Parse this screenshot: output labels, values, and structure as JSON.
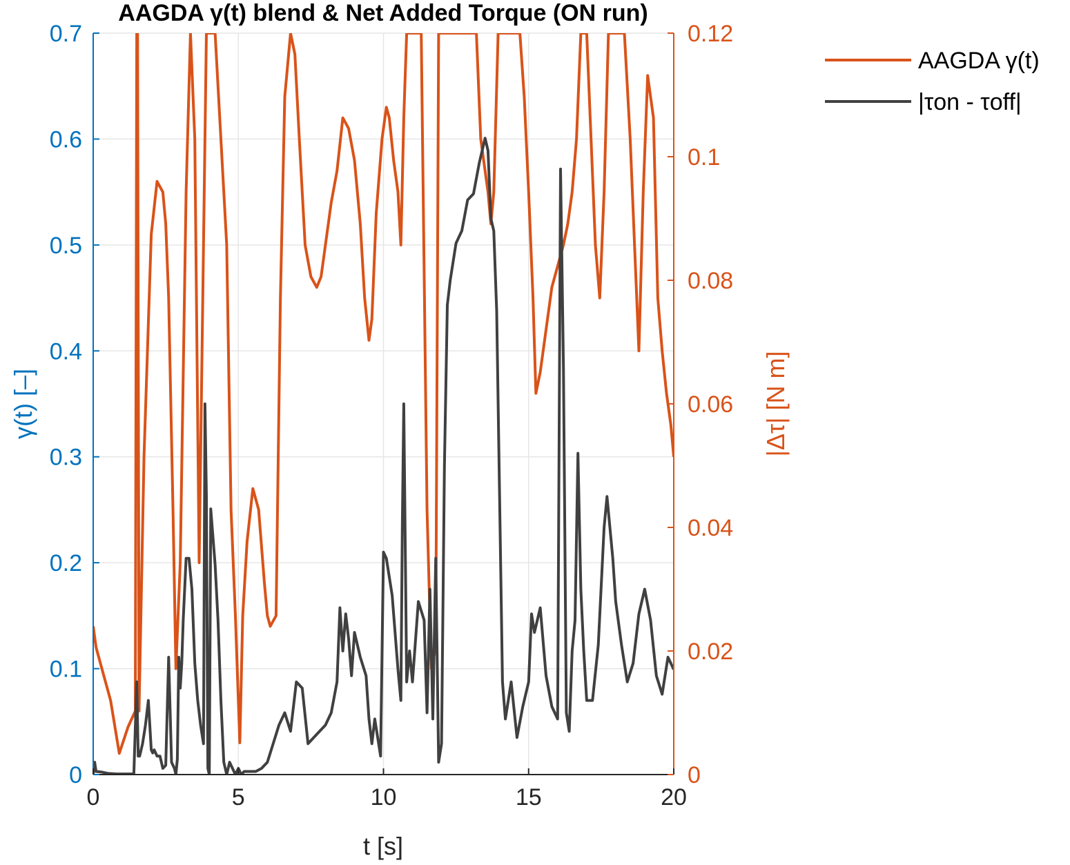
{
  "colors": {
    "left_axis": "#0072BD",
    "right_axis": "#D95319",
    "gamma_line": "#D95319",
    "torque_line": "#404040",
    "grid": "#E6E6E6",
    "axis_x": "#262626"
  },
  "chart_data": {
    "type": "line",
    "title": "AAGDA γ(t) blend & Net Added Torque (ON run)",
    "xlabel": "t [s]",
    "ylabel_left": "γ(t) [–]",
    "ylabel_right": "|Δτ| [N m]",
    "xlim": [
      0,
      20
    ],
    "ylim_left": [
      0,
      0.7
    ],
    "ylim_right": [
      0,
      0.12
    ],
    "xticks": [
      0,
      5,
      10,
      15,
      20
    ],
    "yticks_left": [
      0,
      0.1,
      0.2,
      0.3,
      0.4,
      0.5,
      0.6,
      0.7
    ],
    "yticks_right": [
      0,
      0.02,
      0.04,
      0.06,
      0.08,
      0.1,
      0.12
    ],
    "xtick_labels": [
      "0",
      "5",
      "10",
      "15",
      "20"
    ],
    "ytick_labels_left": [
      "0",
      "0.1",
      "0.2",
      "0.3",
      "0.4",
      "0.5",
      "0.6",
      "0.7"
    ],
    "ytick_labels_right": [
      "0",
      "0.02",
      "0.04",
      "0.06",
      "0.08",
      "0.1",
      "0.12"
    ],
    "grid": true,
    "legend_position": "outside-top-right",
    "series": [
      {
        "name": "AAGDA γ(t)",
        "axis": "left",
        "x": [
          0,
          0.1,
          0.3,
          0.6,
          0.9,
          1.2,
          1.45,
          1.5,
          1.53,
          1.58,
          1.75,
          2.0,
          2.2,
          2.4,
          2.5,
          2.6,
          2.75,
          2.85,
          3.0,
          3.2,
          3.35,
          3.5,
          3.65,
          3.8,
          3.9,
          4.0,
          4.2,
          4.4,
          4.6,
          4.75,
          4.9,
          5.05,
          5.15,
          5.3,
          5.5,
          5.7,
          5.9,
          6.0,
          6.1,
          6.3,
          6.45,
          6.6,
          6.8,
          6.95,
          7.1,
          7.3,
          7.5,
          7.7,
          7.85,
          8.0,
          8.2,
          8.4,
          8.6,
          8.8,
          9.0,
          9.2,
          9.35,
          9.5,
          9.6,
          9.75,
          9.95,
          10.1,
          10.2,
          10.35,
          10.5,
          10.6,
          10.7,
          10.8,
          10.95,
          11.1,
          11.3,
          11.5,
          11.65,
          11.8,
          11.9,
          12.0,
          12.2,
          12.4,
          12.55,
          12.7,
          12.9,
          13.05,
          13.2,
          13.35,
          13.6,
          13.7,
          13.8,
          13.95,
          14.1,
          14.3,
          14.5,
          14.6,
          14.7,
          14.85,
          15.0,
          15.15,
          15.25,
          15.4,
          15.6,
          15.8,
          16.0,
          16.2,
          16.35,
          16.5,
          16.65,
          16.8,
          17.0,
          17.15,
          17.3,
          17.45,
          17.6,
          17.75,
          17.9,
          18.1,
          18.3,
          18.5,
          18.65,
          18.8,
          18.95,
          19.1,
          19.3,
          19.45,
          19.6,
          19.75,
          19.9,
          20.0
        ],
        "y": [
          0.14,
          0.12,
          0.1,
          0.07,
          0.02,
          0.045,
          0.06,
          0.7,
          0.7,
          0.06,
          0.3,
          0.51,
          0.56,
          0.55,
          0.52,
          0.45,
          0.25,
          0.1,
          0.2,
          0.55,
          0.7,
          0.6,
          0.2,
          0.5,
          0.7,
          0.7,
          0.7,
          0.6,
          0.5,
          0.25,
          0.15,
          0.03,
          0.15,
          0.22,
          0.27,
          0.25,
          0.18,
          0.15,
          0.14,
          0.15,
          0.45,
          0.64,
          0.7,
          0.68,
          0.6,
          0.5,
          0.47,
          0.46,
          0.47,
          0.5,
          0.54,
          0.57,
          0.62,
          0.61,
          0.58,
          0.52,
          0.45,
          0.41,
          0.43,
          0.53,
          0.6,
          0.63,
          0.62,
          0.58,
          0.55,
          0.5,
          0.62,
          0.7,
          0.7,
          0.7,
          0.7,
          0.25,
          0.1,
          0.12,
          0.7,
          0.7,
          0.7,
          0.7,
          0.7,
          0.7,
          0.7,
          0.7,
          0.7,
          0.6,
          0.55,
          0.52,
          0.55,
          0.7,
          0.7,
          0.7,
          0.7,
          0.7,
          0.7,
          0.64,
          0.55,
          0.45,
          0.36,
          0.38,
          0.42,
          0.46,
          0.48,
          0.5,
          0.52,
          0.55,
          0.6,
          0.7,
          0.7,
          0.6,
          0.5,
          0.45,
          0.55,
          0.7,
          0.7,
          0.7,
          0.7,
          0.6,
          0.5,
          0.4,
          0.55,
          0.66,
          0.62,
          0.45,
          0.4,
          0.36,
          0.33,
          0.3
        ]
      },
      {
        "name": "|τon - τoff|",
        "axis": "right",
        "x": [
          0,
          0.05,
          0.1,
          0.3,
          0.5,
          0.8,
          1.1,
          1.4,
          1.5,
          1.55,
          1.6,
          1.7,
          1.8,
          1.9,
          2.0,
          2.05,
          2.1,
          2.2,
          2.3,
          2.4,
          2.5,
          2.6,
          2.7,
          2.8,
          2.85,
          2.9,
          2.95,
          3.0,
          3.05,
          3.1,
          3.2,
          3.3,
          3.4,
          3.5,
          3.6,
          3.7,
          3.8,
          3.85,
          3.9,
          3.95,
          4.0,
          4.05,
          4.1,
          4.2,
          4.3,
          4.4,
          4.5,
          4.6,
          4.7,
          4.8,
          4.9,
          5.0,
          5.1,
          5.2,
          5.4,
          5.6,
          5.8,
          6.0,
          6.2,
          6.4,
          6.6,
          6.8,
          7.0,
          7.2,
          7.4,
          7.6,
          7.8,
          8.0,
          8.2,
          8.4,
          8.5,
          8.6,
          8.7,
          8.8,
          8.9,
          9.0,
          9.2,
          9.4,
          9.5,
          9.6,
          9.7,
          9.8,
          9.9,
          10.0,
          10.1,
          10.3,
          10.5,
          10.6,
          10.65,
          10.7,
          10.8,
          10.9,
          11.0,
          11.2,
          11.4,
          11.5,
          11.6,
          11.7,
          11.8,
          11.9,
          12.0,
          12.1,
          12.2,
          12.3,
          12.5,
          12.7,
          12.9,
          13.1,
          13.3,
          13.5,
          13.6,
          13.7,
          13.8,
          13.9,
          14.0,
          14.1,
          14.2,
          14.3,
          14.4,
          14.6,
          14.8,
          15.0,
          15.1,
          15.2,
          15.4,
          15.6,
          15.8,
          16.0,
          16.1,
          16.2,
          16.3,
          16.4,
          16.5,
          16.6,
          16.7,
          16.8,
          16.9,
          17.0,
          17.2,
          17.4,
          17.6,
          17.7,
          17.8,
          17.9,
          18.0,
          18.2,
          18.4,
          18.6,
          18.8,
          19.0,
          19.2,
          19.4,
          19.6,
          19.8,
          19.9,
          20.0
        ],
        "y": [
          0.0,
          0.002,
          0.0005,
          0.0004,
          0.0002,
          0.0001,
          0.0001,
          0.0001,
          0.015,
          0.003,
          0.003,
          0.005,
          0.008,
          0.012,
          0.004,
          0.0035,
          0.004,
          0.003,
          0.003,
          0.001,
          0.0015,
          0.019,
          0.002,
          0.001,
          0.0,
          0.0025,
          0.019,
          0.014,
          0.018,
          0.025,
          0.035,
          0.035,
          0.03,
          0.018,
          0.012,
          0.008,
          0.005,
          0.06,
          0.045,
          0.001,
          0.0,
          0.043,
          0.04,
          0.034,
          0.025,
          0.012,
          0.002,
          0.0,
          0.002,
          0.001,
          0.0,
          0.001,
          0.0,
          0.0005,
          0.0005,
          0.0005,
          0.001,
          0.002,
          0.005,
          0.008,
          0.01,
          0.007,
          0.015,
          0.014,
          0.005,
          0.006,
          0.007,
          0.008,
          0.01,
          0.015,
          0.027,
          0.02,
          0.026,
          0.022,
          0.016,
          0.023,
          0.019,
          0.016,
          0.009,
          0.005,
          0.009,
          0.006,
          0.003,
          0.036,
          0.035,
          0.029,
          0.017,
          0.012,
          0.04,
          0.06,
          0.015,
          0.02,
          0.015,
          0.028,
          0.025,
          0.01,
          0.03,
          0.009,
          0.035,
          0.002,
          0.005,
          0.05,
          0.076,
          0.08,
          0.086,
          0.088,
          0.093,
          0.094,
          0.099,
          0.103,
          0.101,
          0.09,
          0.088,
          0.075,
          0.045,
          0.015,
          0.009,
          0.012,
          0.015,
          0.006,
          0.011,
          0.015,
          0.026,
          0.023,
          0.027,
          0.016,
          0.011,
          0.009,
          0.098,
          0.066,
          0.01,
          0.007,
          0.02,
          0.025,
          0.052,
          0.03,
          0.02,
          0.012,
          0.012,
          0.021,
          0.04,
          0.045,
          0.04,
          0.035,
          0.028,
          0.021,
          0.015,
          0.018,
          0.026,
          0.03,
          0.025,
          0.016,
          0.013,
          0.019,
          0.018,
          0.017
        ]
      }
    ]
  }
}
